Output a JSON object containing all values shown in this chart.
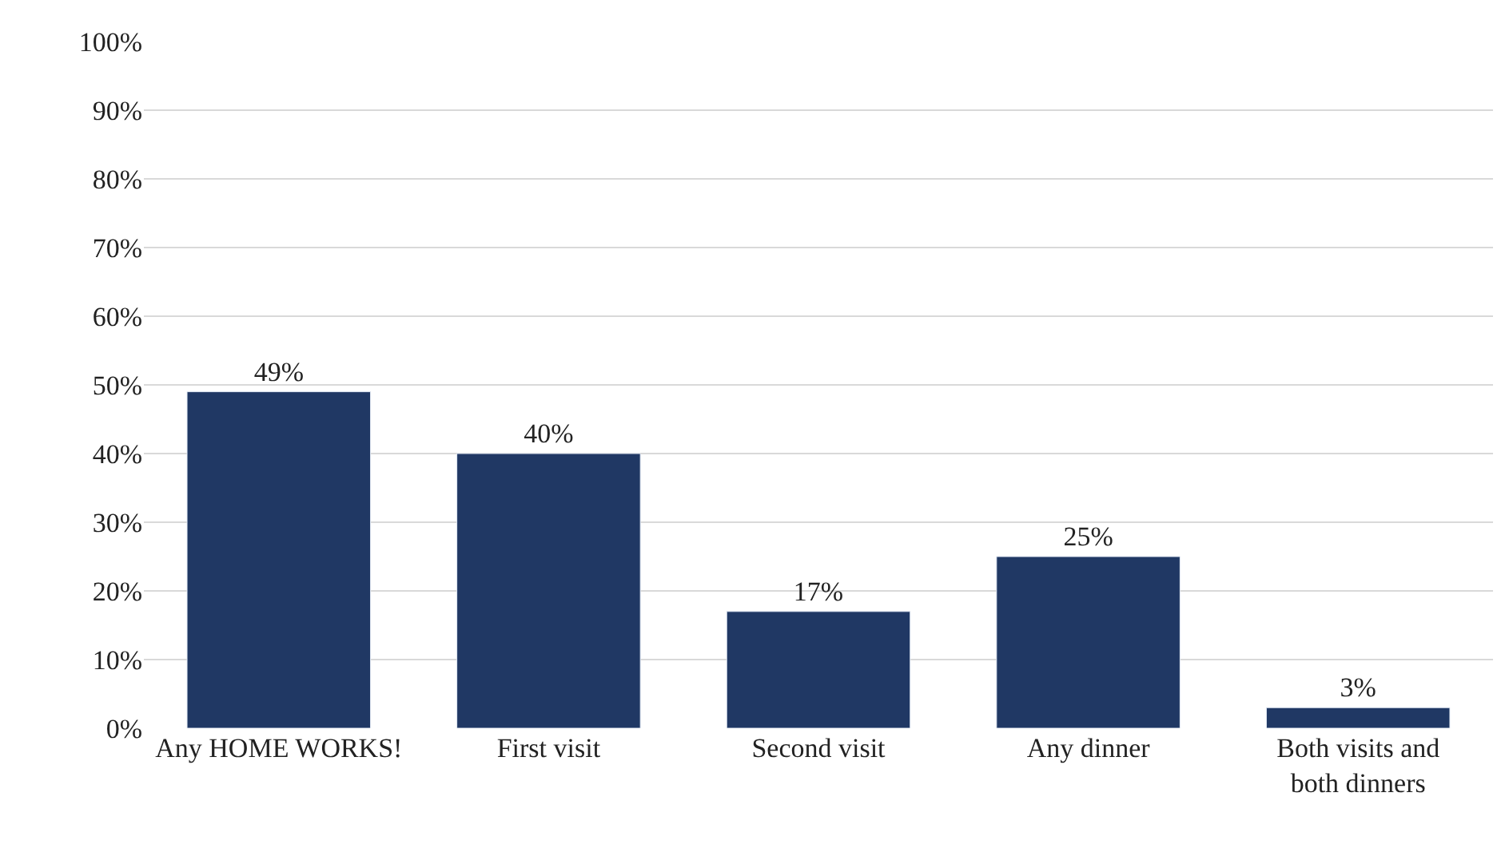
{
  "chart_data": {
    "type": "bar",
    "categories": [
      "Any HOME WORKS!",
      "First visit",
      "Second visit",
      "Any dinner",
      "Both visits and both dinners"
    ],
    "values": [
      49,
      40,
      17,
      25,
      3
    ],
    "value_labels": [
      "49%",
      "40%",
      "17%",
      "25%",
      "3%"
    ],
    "color": "#203864",
    "ylim": [
      0,
      100
    ],
    "yticks": [
      {
        "value": 0,
        "label": "0%"
      },
      {
        "value": 10,
        "label": "10%"
      },
      {
        "value": 20,
        "label": "20%"
      },
      {
        "value": 30,
        "label": "30%"
      },
      {
        "value": 40,
        "label": "40%"
      },
      {
        "value": 50,
        "label": "50%"
      },
      {
        "value": 60,
        "label": "60%"
      },
      {
        "value": 70,
        "label": "70%"
      },
      {
        "value": 80,
        "label": "80%"
      },
      {
        "value": 90,
        "label": "90%"
      },
      {
        "value": 100,
        "label": "100%"
      }
    ],
    "grid": "y",
    "legend": false
  }
}
